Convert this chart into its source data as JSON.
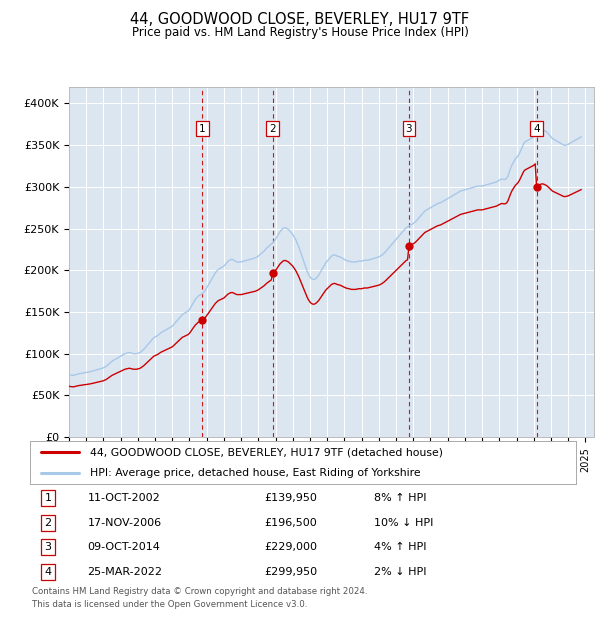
{
  "title": "44, GOODWOOD CLOSE, BEVERLEY, HU17 9TF",
  "subtitle": "Price paid vs. HM Land Registry's House Price Index (HPI)",
  "background_color": "#ffffff",
  "plot_bg_color": "#dce6f1",
  "grid_color": "#ffffff",
  "legend_line1": "44, GOODWOOD CLOSE, BEVERLEY, HU17 9TF (detached house)",
  "legend_line2": "HPI: Average price, detached house, East Riding of Yorkshire",
  "footer1": "Contains HM Land Registry data © Crown copyright and database right 2024.",
  "footer2": "This data is licensed under the Open Government Licence v3.0.",
  "sale_dates": [
    "2002-10-11",
    "2006-11-17",
    "2014-10-09",
    "2022-03-25"
  ],
  "sale_prices": [
    139950,
    196500,
    229000,
    299950
  ],
  "sale_labels": [
    "1",
    "2",
    "3",
    "4"
  ],
  "sale_hpi_pct": [
    "8% ↑ HPI",
    "10% ↓ HPI",
    "4% ↑ HPI",
    "2% ↓ HPI"
  ],
  "sale_date_labels": [
    "11-OCT-2002",
    "17-NOV-2006",
    "09-OCT-2014",
    "25-MAR-2022"
  ],
  "sale_price_labels": [
    "£139,950",
    "£196,500",
    "£229,000",
    "£299,950"
  ],
  "hpi_line_color": "#a8c8e8",
  "price_line_color": "#cc0000",
  "vline_color": "#cc0000",
  "marker_color": "#cc0000",
  "ylim": [
    0,
    420000
  ],
  "yticks": [
    0,
    50000,
    100000,
    150000,
    200000,
    250000,
    300000,
    350000,
    400000
  ],
  "ytick_labels": [
    "£0",
    "£50K",
    "£100K",
    "£150K",
    "£200K",
    "£250K",
    "£300K",
    "£350K",
    "£400K"
  ],
  "xlim_start": 1995.0,
  "xlim_end": 2025.5,
  "hpi_data": {
    "1995-01": 75000,
    "1995-02": 74500,
    "1995-03": 74200,
    "1995-04": 74000,
    "1995-05": 74500,
    "1995-06": 75000,
    "1995-07": 75500,
    "1995-08": 76000,
    "1995-09": 76200,
    "1995-10": 76500,
    "1995-11": 77000,
    "1995-12": 77200,
    "1996-01": 77500,
    "1996-02": 77800,
    "1996-03": 78000,
    "1996-04": 78500,
    "1996-05": 79000,
    "1996-06": 79500,
    "1996-07": 80000,
    "1996-08": 80500,
    "1996-09": 81000,
    "1996-10": 81500,
    "1996-11": 82000,
    "1996-12": 82500,
    "1997-01": 83000,
    "1997-02": 84000,
    "1997-03": 85000,
    "1997-04": 86500,
    "1997-05": 88000,
    "1997-06": 89500,
    "1997-07": 91000,
    "1997-08": 92000,
    "1997-09": 93000,
    "1997-10": 94000,
    "1997-11": 95000,
    "1997-12": 96000,
    "1998-01": 97000,
    "1998-02": 98000,
    "1998-03": 99000,
    "1998-04": 100000,
    "1998-05": 100500,
    "1998-06": 101000,
    "1998-07": 101500,
    "1998-08": 101000,
    "1998-09": 100500,
    "1998-10": 100000,
    "1998-11": 100000,
    "1998-12": 100000,
    "1999-01": 100500,
    "1999-02": 101000,
    "1999-03": 102000,
    "1999-04": 103500,
    "1999-05": 105000,
    "1999-06": 107000,
    "1999-07": 109000,
    "1999-08": 111000,
    "1999-09": 113000,
    "1999-10": 115000,
    "1999-11": 117000,
    "1999-12": 119000,
    "2000-01": 120000,
    "2000-02": 121000,
    "2000-03": 122000,
    "2000-04": 123500,
    "2000-05": 125000,
    "2000-06": 126000,
    "2000-07": 127000,
    "2000-08": 128000,
    "2000-09": 129000,
    "2000-10": 130000,
    "2000-11": 131000,
    "2000-12": 132000,
    "2001-01": 133000,
    "2001-02": 135000,
    "2001-03": 137000,
    "2001-04": 139000,
    "2001-05": 141000,
    "2001-06": 143000,
    "2001-07": 145000,
    "2001-08": 147000,
    "2001-09": 148000,
    "2001-10": 149000,
    "2001-11": 150000,
    "2001-12": 151000,
    "2002-01": 153000,
    "2002-02": 156000,
    "2002-03": 159000,
    "2002-04": 162000,
    "2002-05": 165000,
    "2002-06": 167000,
    "2002-07": 169000,
    "2002-08": 170000,
    "2002-09": 171000,
    "2002-10": 172000,
    "2002-11": 174000,
    "2002-12": 176000,
    "2003-01": 179000,
    "2003-02": 182000,
    "2003-03": 185000,
    "2003-04": 188000,
    "2003-05": 191000,
    "2003-06": 194000,
    "2003-07": 197000,
    "2003-08": 199000,
    "2003-09": 201000,
    "2003-10": 202000,
    "2003-11": 203000,
    "2003-12": 204000,
    "2004-01": 205000,
    "2004-02": 207000,
    "2004-03": 209000,
    "2004-04": 211000,
    "2004-05": 212000,
    "2004-06": 213000,
    "2004-07": 213000,
    "2004-08": 212000,
    "2004-09": 211000,
    "2004-10": 210000,
    "2004-11": 210000,
    "2004-12": 210000,
    "2005-01": 210000,
    "2005-02": 210500,
    "2005-03": 211000,
    "2005-04": 211500,
    "2005-05": 212000,
    "2005-06": 212500,
    "2005-07": 213000,
    "2005-08": 213500,
    "2005-09": 214000,
    "2005-10": 214500,
    "2005-11": 215000,
    "2005-12": 216000,
    "2006-01": 217000,
    "2006-02": 218500,
    "2006-03": 220000,
    "2006-04": 221500,
    "2006-05": 223000,
    "2006-06": 225000,
    "2006-07": 227000,
    "2006-08": 228500,
    "2006-09": 230000,
    "2006-10": 231500,
    "2006-11": 233000,
    "2006-12": 235000,
    "2007-01": 237000,
    "2007-02": 240000,
    "2007-03": 243000,
    "2007-04": 246000,
    "2007-05": 248000,
    "2007-06": 250000,
    "2007-07": 251000,
    "2007-08": 251000,
    "2007-09": 250000,
    "2007-10": 249000,
    "2007-11": 247000,
    "2007-12": 245000,
    "2008-01": 243000,
    "2008-02": 240000,
    "2008-03": 237000,
    "2008-04": 233000,
    "2008-05": 229000,
    "2008-06": 224000,
    "2008-07": 219000,
    "2008-08": 214000,
    "2008-09": 209000,
    "2008-10": 204000,
    "2008-11": 199000,
    "2008-12": 195000,
    "2009-01": 192000,
    "2009-02": 190000,
    "2009-03": 189000,
    "2009-04": 189000,
    "2009-05": 190000,
    "2009-06": 192000,
    "2009-07": 194000,
    "2009-08": 197000,
    "2009-09": 200000,
    "2009-10": 203000,
    "2009-11": 206000,
    "2009-12": 209000,
    "2010-01": 211000,
    "2010-02": 213000,
    "2010-03": 215000,
    "2010-04": 217000,
    "2010-05": 218000,
    "2010-06": 218500,
    "2010-07": 218000,
    "2010-08": 217000,
    "2010-09": 216500,
    "2010-10": 216000,
    "2010-11": 215000,
    "2010-12": 214000,
    "2011-01": 213000,
    "2011-02": 212000,
    "2011-03": 211500,
    "2011-04": 211000,
    "2011-05": 210500,
    "2011-06": 210000,
    "2011-07": 210000,
    "2011-08": 210000,
    "2011-09": 210000,
    "2011-10": 210500,
    "2011-11": 211000,
    "2011-12": 211000,
    "2012-01": 211000,
    "2012-02": 211500,
    "2012-03": 212000,
    "2012-04": 212000,
    "2012-05": 212000,
    "2012-06": 212500,
    "2012-07": 213000,
    "2012-08": 213500,
    "2012-09": 214000,
    "2012-10": 214500,
    "2012-11": 215000,
    "2012-12": 215500,
    "2013-01": 216000,
    "2013-02": 217000,
    "2013-03": 218000,
    "2013-04": 219500,
    "2013-05": 221000,
    "2013-06": 223000,
    "2013-07": 225000,
    "2013-08": 227000,
    "2013-09": 229000,
    "2013-10": 231000,
    "2013-11": 233000,
    "2013-12": 235000,
    "2014-01": 237000,
    "2014-02": 239000,
    "2014-03": 241000,
    "2014-04": 243000,
    "2014-05": 245000,
    "2014-06": 247000,
    "2014-07": 249000,
    "2014-08": 251000,
    "2014-09": 252000,
    "2014-10": 253000,
    "2014-11": 254000,
    "2014-12": 255000,
    "2015-01": 256000,
    "2015-02": 257500,
    "2015-03": 259000,
    "2015-04": 261000,
    "2015-05": 263000,
    "2015-06": 265000,
    "2015-07": 267000,
    "2015-08": 269000,
    "2015-09": 271000,
    "2015-10": 272000,
    "2015-11": 273000,
    "2015-12": 274000,
    "2016-01": 275000,
    "2016-02": 276000,
    "2016-03": 277000,
    "2016-04": 278000,
    "2016-05": 279000,
    "2016-06": 280000,
    "2016-07": 280500,
    "2016-08": 281000,
    "2016-09": 282000,
    "2016-10": 283000,
    "2016-11": 284000,
    "2016-12": 285000,
    "2017-01": 286000,
    "2017-02": 287000,
    "2017-03": 288000,
    "2017-04": 289000,
    "2017-05": 290000,
    "2017-06": 291000,
    "2017-07": 292000,
    "2017-08": 293000,
    "2017-09": 294000,
    "2017-10": 295000,
    "2017-11": 295500,
    "2017-12": 296000,
    "2018-01": 296500,
    "2018-02": 297000,
    "2018-03": 297500,
    "2018-04": 298000,
    "2018-05": 298500,
    "2018-06": 299000,
    "2018-07": 299500,
    "2018-08": 300000,
    "2018-09": 300500,
    "2018-10": 301000,
    "2018-11": 301000,
    "2018-12": 301000,
    "2019-01": 301000,
    "2019-02": 301500,
    "2019-03": 302000,
    "2019-04": 302500,
    "2019-05": 303000,
    "2019-06": 303500,
    "2019-07": 304000,
    "2019-08": 304500,
    "2019-09": 305000,
    "2019-10": 305500,
    "2019-11": 306000,
    "2019-12": 307000,
    "2020-01": 308000,
    "2020-02": 309000,
    "2020-03": 309500,
    "2020-04": 309000,
    "2020-05": 309000,
    "2020-06": 310000,
    "2020-07": 313000,
    "2020-08": 318000,
    "2020-09": 323000,
    "2020-10": 327000,
    "2020-11": 330000,
    "2020-12": 333000,
    "2021-01": 335000,
    "2021-02": 337000,
    "2021-03": 340000,
    "2021-04": 344000,
    "2021-05": 348000,
    "2021-06": 352000,
    "2021-07": 354000,
    "2021-08": 355000,
    "2021-09": 356000,
    "2021-10": 357000,
    "2021-11": 358000,
    "2021-12": 359000,
    "2022-01": 360000,
    "2022-02": 362000,
    "2022-03": 364000,
    "2022-04": 366000,
    "2022-05": 367000,
    "2022-06": 368000,
    "2022-07": 368500,
    "2022-08": 368000,
    "2022-09": 367000,
    "2022-10": 366000,
    "2022-11": 364000,
    "2022-12": 362000,
    "2023-01": 360000,
    "2023-02": 358000,
    "2023-03": 357000,
    "2023-04": 356000,
    "2023-05": 355000,
    "2023-06": 354000,
    "2023-07": 353000,
    "2023-08": 352000,
    "2023-09": 351000,
    "2023-10": 350000,
    "2023-11": 350000,
    "2023-12": 350500,
    "2024-01": 351000,
    "2024-02": 352000,
    "2024-03": 353000,
    "2024-04": 354000,
    "2024-05": 355000,
    "2024-06": 356000,
    "2024-07": 357000,
    "2024-08": 358000,
    "2024-09": 359000,
    "2024-10": 360000
  }
}
